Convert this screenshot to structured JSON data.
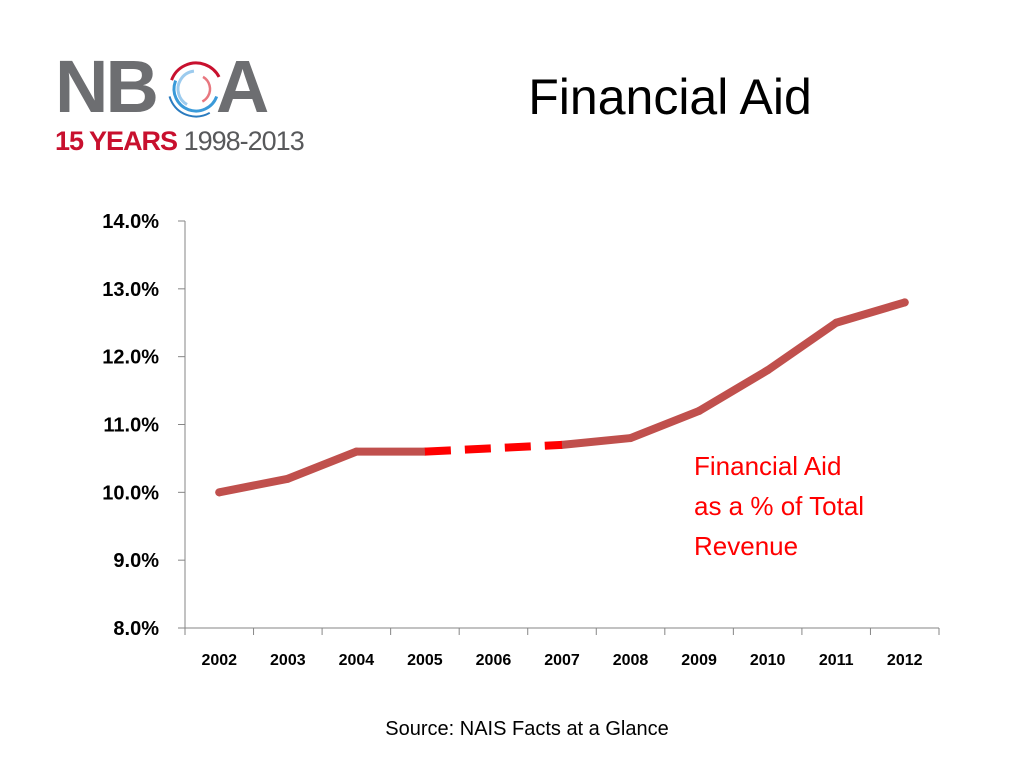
{
  "slide": {
    "title": "Financial Aid",
    "source": "Source:  NAIS Facts at a Glance"
  },
  "logo": {
    "letters_left": "NB",
    "letters_right": "A",
    "years_highlight": "15 YEARS",
    "years_range": "1998-2013",
    "icon": "nboa-swirl-o-icon",
    "colors": {
      "text": "#6d6e71",
      "red": "#c8102e",
      "blue": "#3a9ad9"
    }
  },
  "annotation": {
    "lines": [
      "Financial Aid",
      "as a % of Total",
      "Revenue"
    ]
  },
  "chart_data": {
    "type": "line",
    "categories": [
      "2002",
      "2003",
      "2004",
      "2005",
      "2006",
      "2007",
      "2008",
      "2009",
      "2010",
      "2011",
      "2012"
    ],
    "series": [
      {
        "name": "Financial Aid as a % of Total Revenue",
        "values": [
          10.0,
          10.2,
          10.6,
          10.6,
          null,
          10.7,
          10.8,
          11.2,
          11.8,
          12.5,
          12.8
        ],
        "color": "#c0504d"
      }
    ],
    "gap_interpolation": {
      "from": "2005",
      "to": "2007",
      "style": "dashed",
      "color": "#ff0000"
    },
    "y_ticks": [
      "8.0%",
      "9.0%",
      "10.0%",
      "11.0%",
      "12.0%",
      "13.0%",
      "14.0%"
    ],
    "ylim": [
      8.0,
      14.0
    ],
    "y_unit": "%",
    "grid": false,
    "legend": "none",
    "title": "",
    "xlabel": "",
    "ylabel": ""
  }
}
